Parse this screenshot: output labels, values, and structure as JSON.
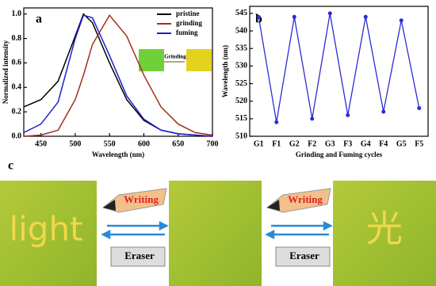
{
  "chart_data": [
    {
      "type": "line",
      "panel": "a",
      "xlabel": "Wavelength (nm)",
      "ylabel": "Normalized intensity",
      "x": [
        425,
        450,
        475,
        500,
        512,
        525,
        550,
        575,
        600,
        625,
        650,
        675,
        700
      ],
      "series": [
        {
          "name": "pristine",
          "color": "#000000",
          "values": [
            0.24,
            0.3,
            0.45,
            0.82,
            1.0,
            0.93,
            0.6,
            0.3,
            0.13,
            0.05,
            0.02,
            0.01,
            0
          ]
        },
        {
          "name": "grinding",
          "color": "#a0301c",
          "values": [
            0,
            0.01,
            0.05,
            0.3,
            0.5,
            0.75,
            0.99,
            0.82,
            0.5,
            0.24,
            0.1,
            0.03,
            0.01
          ]
        },
        {
          "name": "fuming",
          "color": "#1f1fd0",
          "values": [
            0.03,
            0.1,
            0.28,
            0.8,
            0.99,
            0.97,
            0.66,
            0.33,
            0.14,
            0.05,
            0.02,
            0.01,
            0
          ]
        }
      ],
      "xlim": [
        425,
        700
      ],
      "xticks": [
        450,
        500,
        550,
        600,
        650,
        700
      ],
      "ylim": [
        0,
        1.05
      ],
      "yticks": [
        {
          "value": 0,
          "label": "0.0"
        },
        0.2,
        0.4,
        0.6,
        0.8,
        {
          "value": 1,
          "label": "1.0"
        }
      ],
      "legend": "upper right",
      "inset_label": "Grinding"
    },
    {
      "type": "line",
      "panel": "b",
      "xlabel": "Grinding and Fuming cycles",
      "ylabel": "Wavelength (nm)",
      "categories": [
        "G1",
        "F1",
        "G2",
        "F2",
        "G3",
        "F3",
        "G4",
        "F4",
        "G5",
        "F5"
      ],
      "values": [
        544,
        514,
        544,
        515,
        545,
        516,
        544,
        517,
        543,
        518
      ],
      "color": "#2b2bd6",
      "ylim": [
        510,
        547
      ],
      "yticks": [
        510,
        515,
        520,
        525,
        530,
        535,
        540,
        545
      ]
    }
  ],
  "panel_c": {
    "label": "c",
    "left_text": "light",
    "right_text": "光",
    "pencil": "Writing",
    "eraser": "Eraser"
  }
}
